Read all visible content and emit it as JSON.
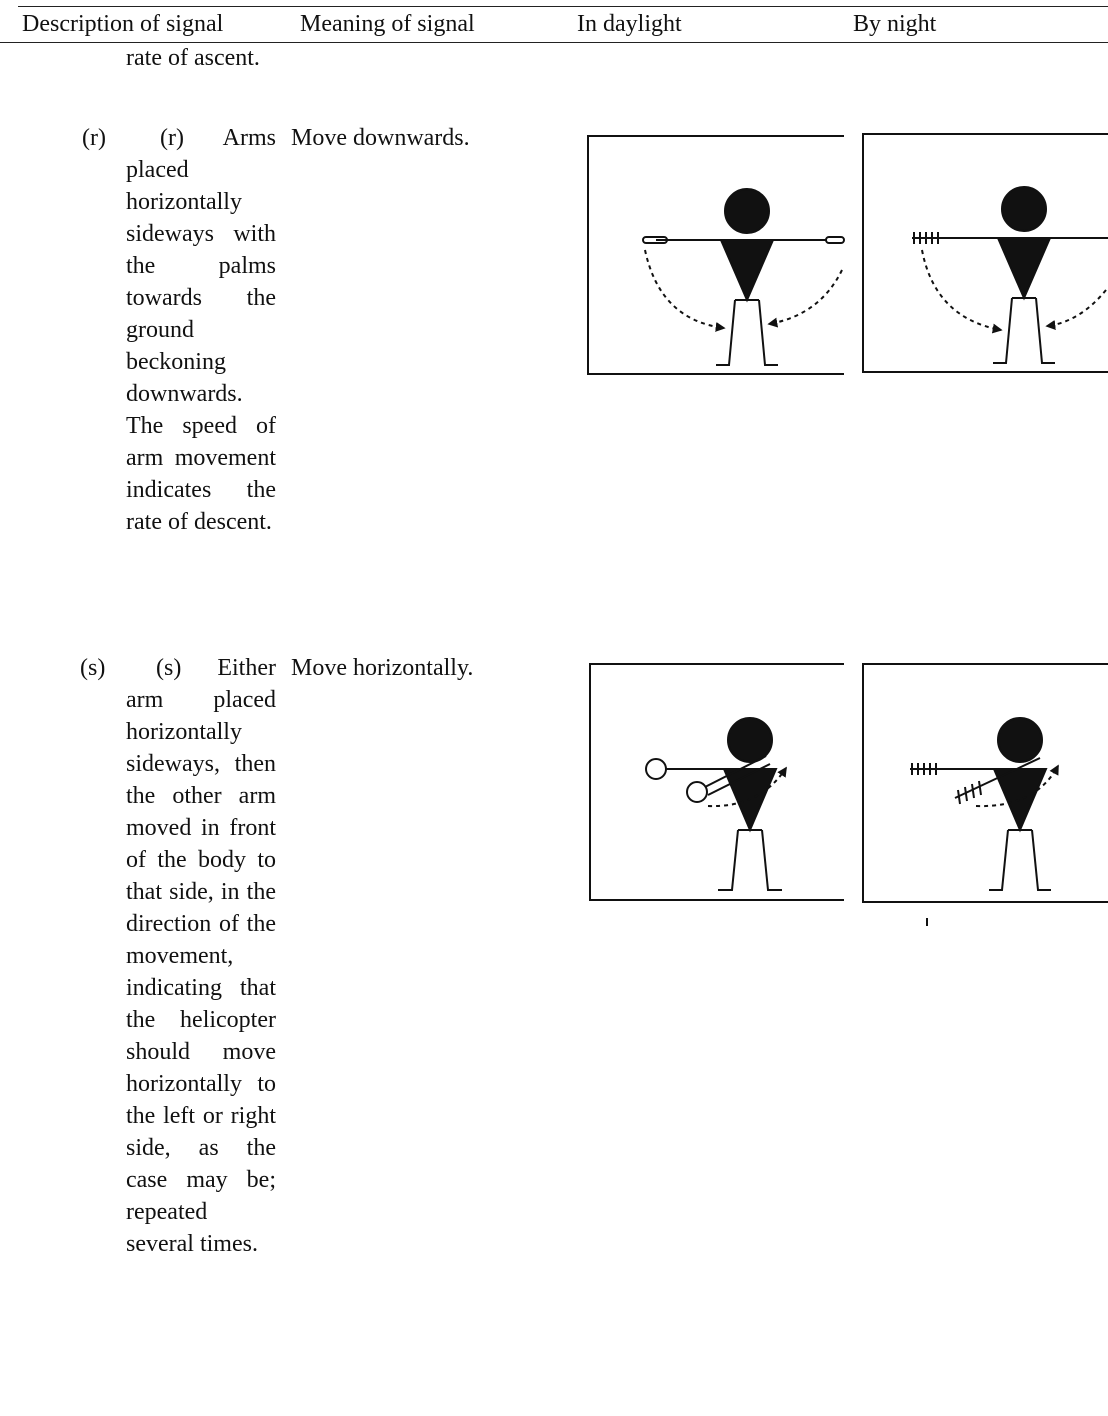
{
  "table": {
    "header": [
      "Description of signal",
      "Meaning of signal",
      "In daylight",
      "By night"
    ],
    "continuation": "rate of ascent.",
    "rows": [
      {
        "label": "(r)",
        "description": "(r) Arms placed horizontally sideways with the palms towards the ground beckoning downwards. The speed of arm movement indicates the rate of descent.",
        "meaning": "Move downwards."
      },
      {
        "label": "(s)",
        "description": "(s) Either arm placed horizontally sideways, then the other arm moved in front of the body to that side, in the direction of the movement, indicating that the helicopter should move horizontally to the left or right side, as the case may be; repeated several times.",
        "meaning": "Move horizontally."
      }
    ]
  }
}
